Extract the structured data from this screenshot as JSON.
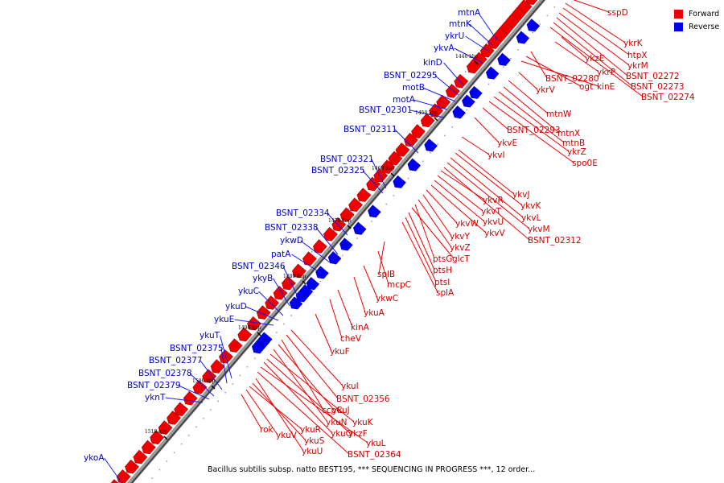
{
  "caption": "Bacillus subtilis subsp. natto BEST195, *** SEQUENCING IN PROGRESS ***, 12 order...",
  "legend": {
    "forward_label": "Forward",
    "reverse_label": "Reverse",
    "forward_color": "#ee0000",
    "reverse_color": "#0000ee"
  },
  "kbp_marks": [
    "1440 kbp",
    "1450 kbp",
    "1460 kbp",
    "1470 kbp",
    "1480 kbp",
    "1490 kbp",
    "1500 kbp",
    "1510 kbp"
  ],
  "forward_genes": [
    "sspD",
    "ykrK",
    "htpX",
    "ykrM",
    "BSNT_02272",
    "BSNT_02273",
    "BSNT_02274",
    "ykzE",
    "ykrP",
    "BSNT_02280",
    "ogt",
    "kinE",
    "ykrV",
    "mtnW",
    "mtnX",
    "mtnB",
    "ykrZ",
    "spo0E",
    "BSNT_02293",
    "ykvE",
    "ykvI",
    "ykvJ",
    "ykvK",
    "ykvL",
    "ykvM",
    "BSNT_02312",
    "ykvR",
    "ykvT",
    "ykvU",
    "ykvV",
    "ykvW",
    "ykvY",
    "ykvZ",
    "ptsG",
    "glcT",
    "ptsH",
    "ptsI",
    "splA",
    "splB",
    "mcpC",
    "ykwC",
    "ykuA",
    "kinA",
    "cheV",
    "ykuF",
    "ykuI",
    "BSNT_02356",
    "ccpC",
    "ykuJ",
    "ykuN",
    "ykuK",
    "ykzF",
    "ykuO",
    "ykuL",
    "BSNT_02364",
    "rok",
    "ykuR",
    "ykuV",
    "ykuS",
    "ykuU"
  ],
  "reverse_genes": [
    "mtnA",
    "mtnK",
    "ykrU",
    "ykvA",
    "kinD",
    "BSNT_02295",
    "motB",
    "motA",
    "BSNT_02301",
    "BSNT_02311",
    "BSNT_02321",
    "BSNT_02325",
    "BSNT_02334",
    "BSNT_02338",
    "ykwD",
    "patA",
    "BSNT_02346",
    "ykyB",
    "ykuC",
    "ykuD",
    "ykuE",
    "ykuT",
    "BSNT_02375",
    "BSNT_02377",
    "BSNT_02378",
    "BSNT_02379",
    "yknT",
    "ykoA"
  ]
}
